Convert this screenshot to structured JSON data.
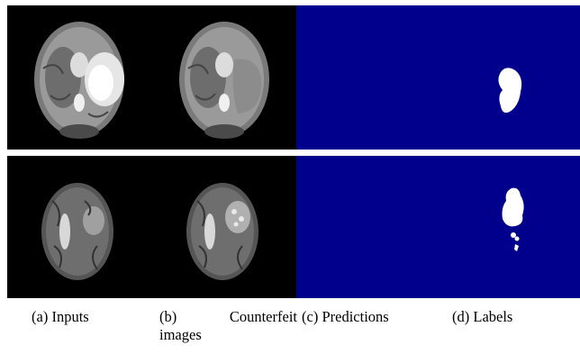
{
  "figure": {
    "rows": [
      {
        "row": "top"
      },
      {
        "row": "bottom"
      }
    ],
    "colors": {
      "image_background": "#000000",
      "prediction_background": "#00008c",
      "mask": "#ffffff"
    }
  },
  "captions": {
    "a": {
      "letter": "(a)",
      "text": "Inputs"
    },
    "b": {
      "letter": "(b)",
      "text_line1": "Counterfeit",
      "text_line2": "images"
    },
    "c": {
      "letter": "(c)",
      "text": "Predictions"
    },
    "d": {
      "letter": "(d)",
      "text": "Labels"
    }
  }
}
